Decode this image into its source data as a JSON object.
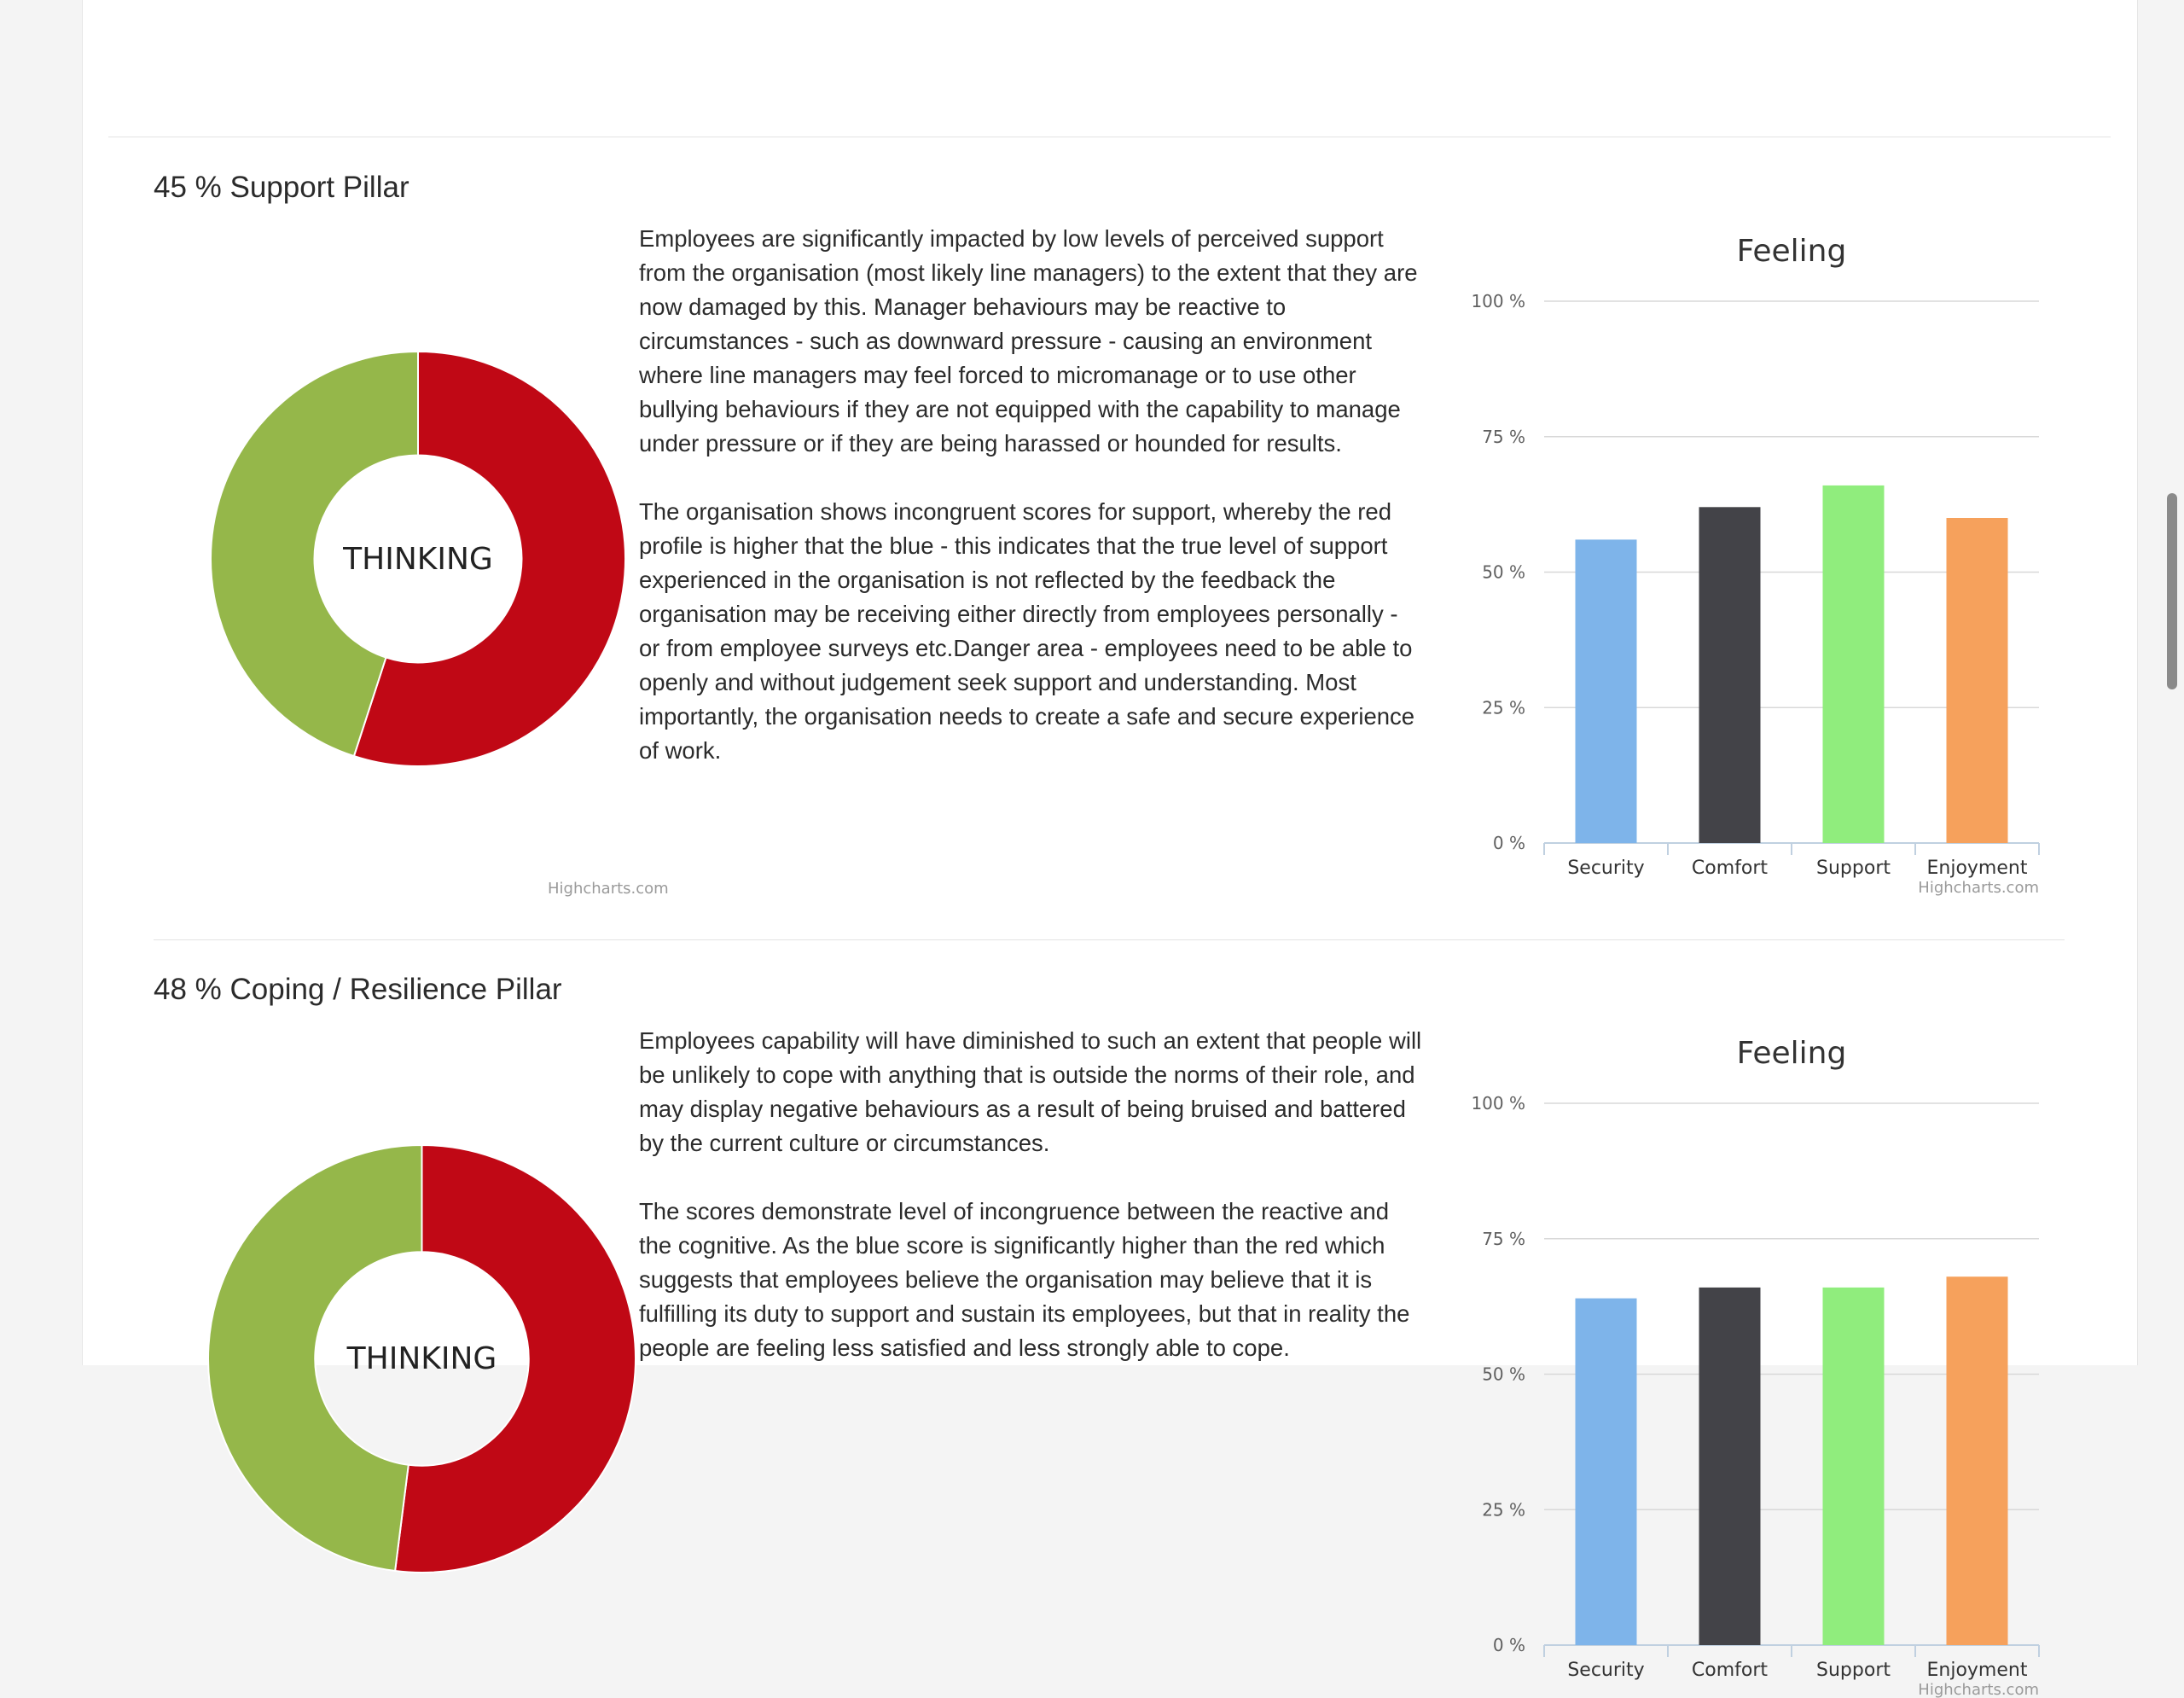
{
  "credit_text": "Highcharts.com",
  "colors": {
    "red": "#c00815",
    "green": "#95b74a",
    "bar_colors": [
      "#7eb4ea",
      "#434348",
      "#90ed7d",
      "#f6a15c"
    ]
  },
  "pillars": [
    {
      "title": "45 % Support Pillar",
      "paragraphs": [
        "Employees are significantly impacted by low levels of perceived support from the organisation (most likely line managers) to the extent that they are now damaged by this. Manager behaviours may be reactive to circumstances - such as downward pressure - causing an environment where line managers may feel forced to micromanage or to use other bullying behaviours if they are not equipped with the capability to manage under pressure or if they are being harassed or hounded for results.",
        "The organisation shows incongruent scores for support, whereby the red profile is higher that the blue - this indicates that the true level of support experienced in the organisation is not reflected by the feedback the organisation may be receiving either directly from employees personally - or from employee surveys etc.Danger area - employees need to be able to openly and without judgement seek support and understanding. Most importantly, the organisation needs to create a safe and secure experience of work."
      ],
      "donut_label": "THINKING",
      "bar_chart_title": "Feeling"
    },
    {
      "title": "48 % Coping / Resilience Pillar",
      "paragraphs": [
        "Employees capability will have diminished to such an extent that people will be unlikely to cope with anything that is outside the norms of their role, and may display negative behaviours as a result of being bruised and battered by the current culture or circumstances.",
        "The scores demonstrate level of incongruence between the reactive and the cognitive. As the blue score is significantly higher than the red which suggests that employees believe the organisation may believe that it is fulfilling its duty to support and sustain its employees, but that in reality the people are feeling less satisfied and less strongly able to cope."
      ],
      "donut_label": "THINKING",
      "bar_chart_title": "Feeling"
    }
  ],
  "chart_data": [
    {
      "type": "pie",
      "variant": "donut",
      "center_label": "THINKING",
      "slices": [
        {
          "value": 55,
          "color": "#c00815"
        },
        {
          "value": 45,
          "color": "#95b74a"
        }
      ]
    },
    {
      "type": "bar",
      "title": "Feeling",
      "categories": [
        "Security",
        "Comfort",
        "Support",
        "Enjoyment"
      ],
      "values": [
        56,
        62,
        66,
        60
      ],
      "ylim": [
        0,
        100
      ],
      "yticks": [
        "0 %",
        "25 %",
        "50 %",
        "75 %",
        "100 %"
      ],
      "grid": true,
      "legend": "none"
    },
    {
      "type": "pie",
      "variant": "donut",
      "center_label": "THINKING",
      "slices": [
        {
          "value": 52,
          "color": "#c00815"
        },
        {
          "value": 48,
          "color": "#95b74a"
        }
      ]
    },
    {
      "type": "bar",
      "title": "Feeling",
      "categories": [
        "Security",
        "Comfort",
        "Support",
        "Enjoyment"
      ],
      "values": [
        64,
        66,
        66,
        68
      ],
      "ylim": [
        0,
        100
      ],
      "yticks": [
        "0 %",
        "25 %",
        "50 %",
        "75 %",
        "100 %"
      ],
      "grid": true,
      "legend": "none"
    }
  ]
}
